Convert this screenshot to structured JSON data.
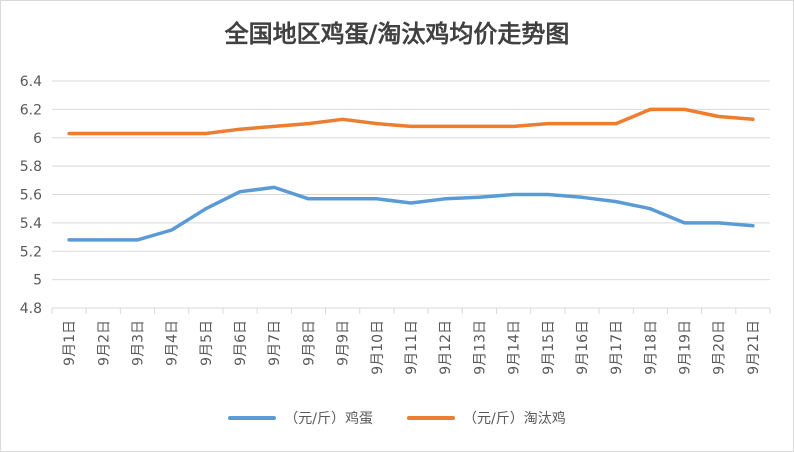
{
  "chart_data": {
    "type": "line",
    "title": "全国地区鸡蛋/淘汰鸡均价走势图",
    "xlabel": "",
    "ylabel": "",
    "categories": [
      "9月1日",
      "9月2日",
      "9月3日",
      "9月4日",
      "9月5日",
      "9月6日",
      "9月7日",
      "9月8日",
      "9月9日",
      "9月10日",
      "9月11日",
      "9月12日",
      "9月13日",
      "9月14日",
      "9月15日",
      "9月16日",
      "9月17日",
      "9月18日",
      "9月19日",
      "9月20日",
      "9月21日"
    ],
    "ylim": [
      4.8,
      6.4
    ],
    "yticks": [
      "6.4",
      "6.2",
      "6",
      "5.8",
      "5.6",
      "5.4",
      "5.2",
      "5",
      "4.8"
    ],
    "grid": true,
    "legend_position": "bottom",
    "series": [
      {
        "name": "（元/斤）鸡蛋",
        "color": "#5b9bd5",
        "values": [
          5.28,
          5.28,
          5.28,
          5.35,
          5.5,
          5.62,
          5.65,
          5.57,
          5.57,
          5.57,
          5.54,
          5.57,
          5.58,
          5.6,
          5.6,
          5.58,
          5.55,
          5.5,
          5.4,
          5.4,
          5.38
        ]
      },
      {
        "name": "（元/斤）淘汰鸡",
        "color": "#ed7d31",
        "values": [
          6.03,
          6.03,
          6.03,
          6.03,
          6.03,
          6.06,
          6.08,
          6.1,
          6.13,
          6.1,
          6.08,
          6.08,
          6.08,
          6.08,
          6.1,
          6.1,
          6.1,
          6.2,
          6.2,
          6.15,
          6.13
        ]
      }
    ]
  }
}
